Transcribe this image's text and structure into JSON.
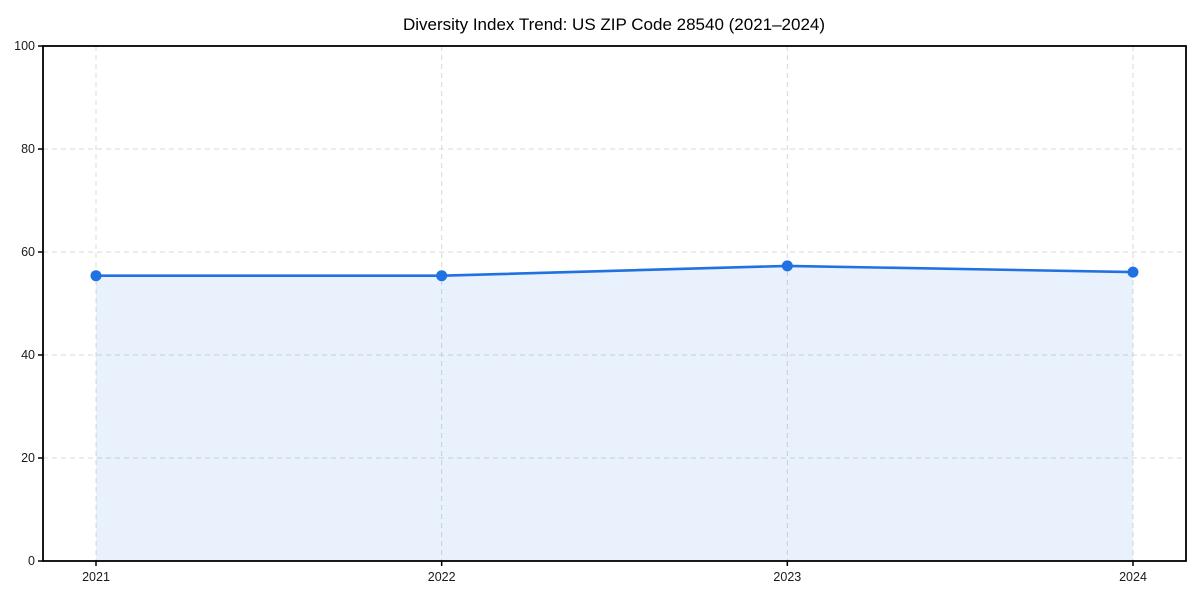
{
  "page": {
    "background": "#ffffff"
  },
  "chart_data": {
    "type": "line",
    "title": "Diversity Index Trend: US ZIP Code 28540 (2021–2024)",
    "x": [
      2021,
      2022,
      2023,
      2024
    ],
    "xtick_labels": [
      "2021",
      "2022",
      "2023",
      "2024"
    ],
    "series": [
      {
        "name": "Diversity Index",
        "values": [
          55.4,
          55.4,
          57.3,
          56.1
        ]
      }
    ],
    "xlabel": "",
    "ylabel": "",
    "ylim": [
      0,
      100
    ],
    "yticks": [
      0,
      20,
      40,
      60,
      80,
      100
    ],
    "grid": true,
    "grid_style": "dashed",
    "legend_position": "none",
    "colors": {
      "line": "#2071e2",
      "marker": "#2071e2",
      "area_fill": "#2071e2",
      "grid": "#d9d9d9",
      "spine": "#000000",
      "tick_text": "#1a1a1a",
      "title_text": "#000000",
      "plot_background": "#ffffff"
    },
    "area_fill_opacity": 0.1,
    "marker_shape": "circle"
  }
}
